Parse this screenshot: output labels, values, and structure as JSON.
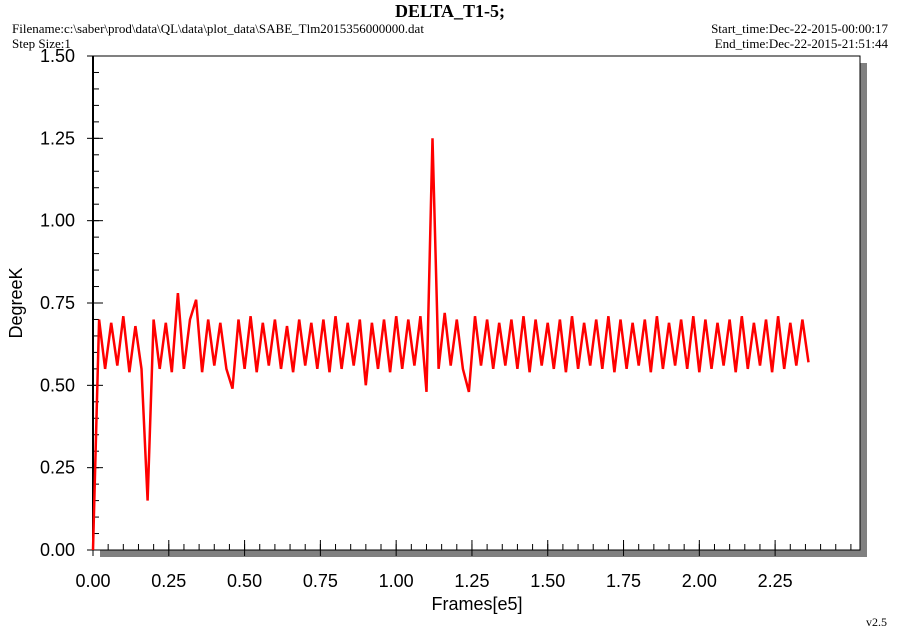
{
  "chart_data": {
    "type": "line",
    "title": "DELTA_T1-5;",
    "filename": "Filename:c:\\saber\\prod\\data\\QL\\data\\plot_data\\SABE_Tlm2015356000000.dat",
    "step_size": "Step Size:1",
    "start_time": "Start_time:Dec-22-2015-00:00:17",
    "end_time": "End_time:Dec-22-2015-21:51:44",
    "version": "v2.5",
    "x_label": "Frames[e5]",
    "y_label": "DegreeK",
    "xlim": [
      0,
      2.53
    ],
    "ylim": [
      0,
      1.5
    ],
    "xticks": [
      {
        "value": 0,
        "label": "0.00"
      },
      0.25,
      {
        "value": 0.5,
        "label": "0.50"
      },
      0.75,
      {
        "value": 1,
        "label": "1.00"
      },
      1.25,
      {
        "value": 1.5,
        "label": "1.50"
      },
      1.75,
      {
        "value": 2,
        "label": "2.00"
      },
      2.25
    ],
    "yticks": [
      {
        "value": 0,
        "label": "0.00"
      },
      0.25,
      {
        "value": 0.5,
        "label": "0.50"
      },
      0.75,
      {
        "value": 1,
        "label": "1.00"
      },
      1.25,
      {
        "value": 1.5,
        "label": "1.50"
      }
    ],
    "minor_step": 0.05,
    "color": "#ff0000",
    "x": [
      0,
      0.02,
      0.04,
      0.06,
      0.08,
      0.1,
      0.12,
      0.14,
      0.16,
      0.18,
      0.2,
      0.22,
      0.24,
      0.26,
      0.28,
      0.3,
      0.32,
      0.34,
      0.36,
      0.38,
      0.4,
      0.42,
      0.44,
      0.46,
      0.48,
      0.5,
      0.52,
      0.54,
      0.56,
      0.58,
      0.6,
      0.62,
      0.64,
      0.66,
      0.68,
      0.7,
      0.72,
      0.74,
      0.76,
      0.78,
      0.8,
      0.82,
      0.84,
      0.86,
      0.88,
      0.9,
      0.92,
      0.94,
      0.96,
      0.98,
      1,
      1.02,
      1.04,
      1.06,
      1.08,
      1.1,
      1.12,
      1.14,
      1.16,
      1.18,
      1.2,
      1.22,
      1.24,
      1.26,
      1.28,
      1.3,
      1.32,
      1.34,
      1.36,
      1.38,
      1.4,
      1.42,
      1.44,
      1.46,
      1.48,
      1.5,
      1.52,
      1.54,
      1.56,
      1.58,
      1.6,
      1.62,
      1.64,
      1.66,
      1.68,
      1.7,
      1.72,
      1.74,
      1.76,
      1.78,
      1.8,
      1.82,
      1.84,
      1.86,
      1.88,
      1.9,
      1.92,
      1.94,
      1.96,
      1.98,
      2,
      2.02,
      2.04,
      2.06,
      2.08,
      2.1,
      2.12,
      2.14,
      2.16,
      2.18,
      2.2,
      2.22,
      2.24,
      2.26,
      2.28,
      2.3,
      2.32,
      2.34,
      2.36
    ],
    "values": [
      0,
      0.7,
      0.55,
      0.69,
      0.56,
      0.71,
      0.54,
      0.68,
      0.55,
      0.15,
      0.7,
      0.55,
      0.69,
      0.54,
      0.78,
      0.55,
      0.7,
      0.76,
      0.54,
      0.7,
      0.56,
      0.69,
      0.55,
      0.49,
      0.7,
      0.55,
      0.71,
      0.54,
      0.69,
      0.56,
      0.7,
      0.55,
      0.68,
      0.54,
      0.7,
      0.56,
      0.69,
      0.55,
      0.7,
      0.54,
      0.71,
      0.55,
      0.69,
      0.56,
      0.7,
      0.5,
      0.69,
      0.55,
      0.7,
      0.54,
      0.71,
      0.55,
      0.7,
      0.56,
      0.71,
      0.48,
      1.25,
      0.55,
      0.72,
      0.56,
      0.7,
      0.55,
      0.48,
      0.71,
      0.56,
      0.7,
      0.55,
      0.69,
      0.56,
      0.7,
      0.55,
      0.71,
      0.54,
      0.7,
      0.56,
      0.69,
      0.55,
      0.7,
      0.54,
      0.71,
      0.55,
      0.69,
      0.56,
      0.7,
      0.55,
      0.71,
      0.54,
      0.7,
      0.55,
      0.69,
      0.56,
      0.7,
      0.54,
      0.71,
      0.55,
      0.69,
      0.56,
      0.7,
      0.55,
      0.71,
      0.54,
      0.7,
      0.55,
      0.69,
      0.56,
      0.7,
      0.54,
      0.71,
      0.55,
      0.69,
      0.56,
      0.7,
      0.54,
      0.71,
      0.55,
      0.69,
      0.56,
      0.7,
      0.57
    ]
  }
}
